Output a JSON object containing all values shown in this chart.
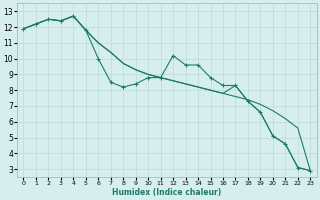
{
  "xlabel": "Humidex (Indice chaleur)",
  "background_color": "#d6efee",
  "grid_color": "#c0dedd",
  "line_color": "#1e7a6e",
  "xlim": [
    -0.5,
    23.5
  ],
  "ylim": [
    2.5,
    13.5
  ],
  "xticks": [
    0,
    1,
    2,
    3,
    4,
    5,
    6,
    7,
    8,
    9,
    10,
    11,
    12,
    13,
    14,
    15,
    16,
    17,
    18,
    19,
    20,
    21,
    22,
    23
  ],
  "yticks": [
    3,
    4,
    5,
    6,
    7,
    8,
    9,
    10,
    11,
    12,
    13
  ],
  "series1_marked": [
    [
      0,
      11.9
    ],
    [
      1,
      12.2
    ],
    [
      2,
      12.5
    ],
    [
      3,
      12.4
    ],
    [
      4,
      12.7
    ],
    [
      5,
      11.8
    ],
    [
      6,
      10.0
    ],
    [
      7,
      8.5
    ],
    [
      8,
      8.2
    ],
    [
      9,
      8.4
    ],
    [
      10,
      8.8
    ],
    [
      11,
      8.8
    ],
    [
      12,
      10.2
    ],
    [
      13,
      9.6
    ],
    [
      14,
      9.6
    ],
    [
      15,
      8.8
    ],
    [
      16,
      8.3
    ],
    [
      17,
      8.3
    ],
    [
      18,
      7.3
    ],
    [
      19,
      6.6
    ],
    [
      20,
      5.1
    ],
    [
      21,
      4.6
    ],
    [
      22,
      3.1
    ],
    [
      23,
      2.9
    ]
  ],
  "series2_smooth": [
    [
      0,
      11.9
    ],
    [
      1,
      12.2
    ],
    [
      2,
      12.5
    ],
    [
      3,
      12.4
    ],
    [
      4,
      12.7
    ],
    [
      5,
      11.8
    ],
    [
      6,
      11.0
    ],
    [
      7,
      10.4
    ],
    [
      8,
      9.7
    ],
    [
      9,
      9.3
    ],
    [
      10,
      9.0
    ],
    [
      11,
      8.8
    ],
    [
      12,
      8.6
    ],
    [
      13,
      8.4
    ],
    [
      14,
      8.2
    ],
    [
      15,
      8.0
    ],
    [
      16,
      7.8
    ],
    [
      17,
      7.6
    ],
    [
      18,
      7.4
    ],
    [
      19,
      7.1
    ],
    [
      20,
      6.7
    ],
    [
      21,
      6.2
    ],
    [
      22,
      5.6
    ],
    [
      23,
      2.9
    ]
  ],
  "series3_mid": [
    [
      0,
      11.9
    ],
    [
      1,
      12.2
    ],
    [
      2,
      12.5
    ],
    [
      3,
      12.4
    ],
    [
      4,
      12.7
    ],
    [
      5,
      11.8
    ],
    [
      6,
      11.0
    ],
    [
      7,
      10.4
    ],
    [
      8,
      9.7
    ],
    [
      9,
      9.3
    ],
    [
      10,
      9.0
    ],
    [
      11,
      8.8
    ],
    [
      12,
      8.6
    ],
    [
      13,
      8.4
    ],
    [
      14,
      8.2
    ],
    [
      15,
      8.0
    ],
    [
      16,
      7.8
    ],
    [
      17,
      8.3
    ],
    [
      18,
      7.3
    ],
    [
      19,
      6.6
    ],
    [
      20,
      5.1
    ],
    [
      21,
      4.6
    ],
    [
      22,
      3.1
    ],
    [
      23,
      2.9
    ]
  ]
}
